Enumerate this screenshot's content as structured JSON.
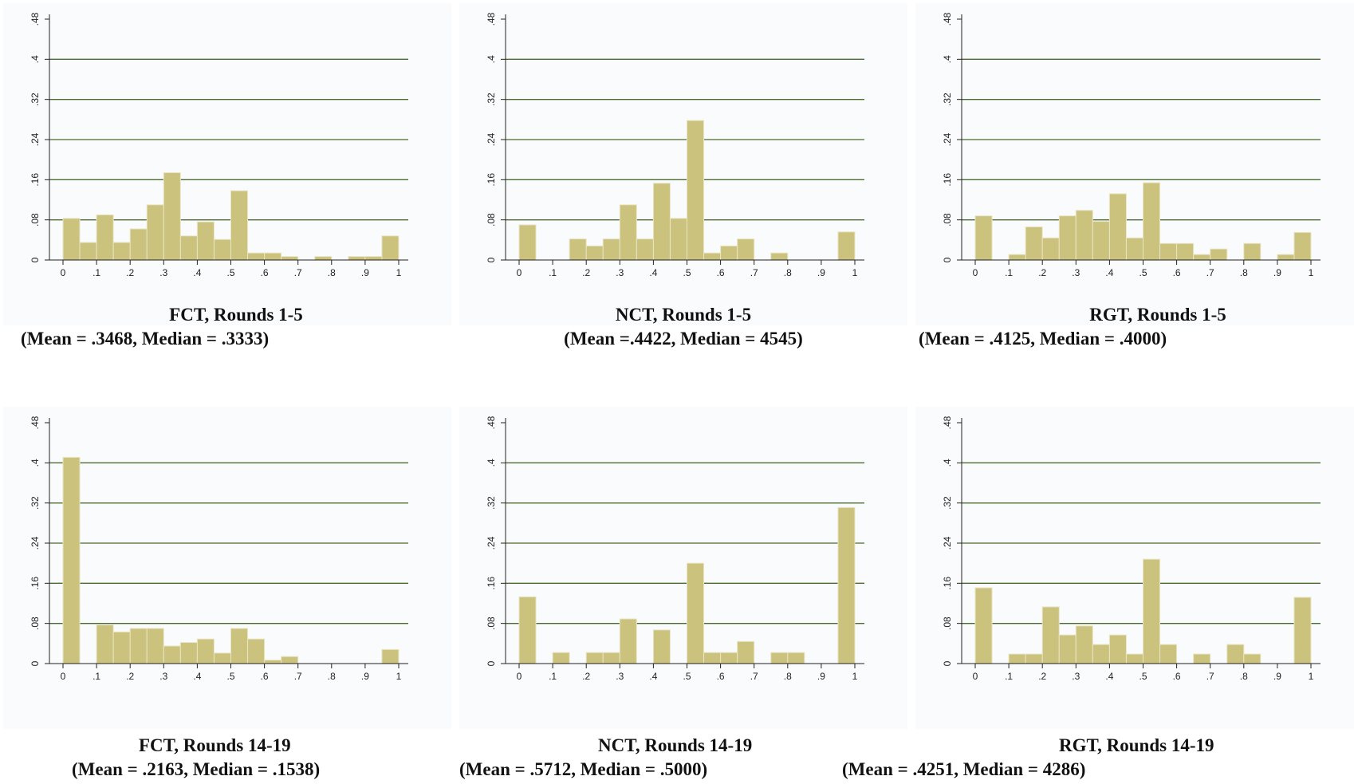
{
  "colors": {
    "bar": "#cbc27e",
    "bar_edge": "#e9e5c4",
    "grid": "#4b6b2e",
    "axis": "#222222",
    "panel_bg": "#fafbfd"
  },
  "chart_data": [
    {
      "type": "bar",
      "title": "FCT, Rounds 1-5",
      "subtitle": "(Mean = .3468, Median = .3333)",
      "bin_width": 0.05,
      "bin_starts": [
        0,
        0.05,
        0.1,
        0.15,
        0.2,
        0.25,
        0.3,
        0.35,
        0.4,
        0.45,
        0.5,
        0.55,
        0.6,
        0.65,
        0.7,
        0.75,
        0.8,
        0.85,
        0.9,
        0.95
      ],
      "values": [
        0.083,
        0.035,
        0.09,
        0.035,
        0.062,
        0.11,
        0.174,
        0.048,
        0.076,
        0.041,
        0.138,
        0.014,
        0.014,
        0.007,
        0,
        0.007,
        0,
        0.007,
        0.007,
        0.048
      ],
      "xlim": [
        0,
        1
      ],
      "ylim": [
        0,
        0.48
      ],
      "x_ticks": [
        "0",
        ".1",
        ".2",
        ".3",
        ".4",
        ".5",
        ".6",
        ".7",
        ".8",
        ".9",
        "1"
      ],
      "y_ticks": [
        "0",
        ".08",
        ".16",
        ".24",
        ".32",
        ".4",
        ".48"
      ],
      "grid": true
    },
    {
      "type": "bar",
      "title": "NCT, Rounds 1-5",
      "subtitle": "(Mean =.4422, Median = 4545)",
      "bin_width": 0.05,
      "bin_starts": [
        0,
        0.05,
        0.1,
        0.15,
        0.2,
        0.25,
        0.3,
        0.35,
        0.4,
        0.45,
        0.5,
        0.55,
        0.6,
        0.65,
        0.7,
        0.75,
        0.8,
        0.85,
        0.9,
        0.95
      ],
      "values": [
        0.07,
        0,
        0,
        0.042,
        0.028,
        0.042,
        0.11,
        0.042,
        0.153,
        0.083,
        0.278,
        0.014,
        0.028,
        0.042,
        0,
        0.014,
        0,
        0,
        0,
        0.056
      ],
      "xlim": [
        0,
        1
      ],
      "ylim": [
        0,
        0.48
      ],
      "x_ticks": [
        "0",
        ".1",
        ".2",
        ".3",
        ".4",
        ".5",
        ".6",
        ".7",
        ".8",
        ".9",
        "1"
      ],
      "y_ticks": [
        "0",
        ".08",
        ".16",
        ".24",
        ".32",
        ".4",
        ".48"
      ],
      "grid": true
    },
    {
      "type": "bar",
      "title": "RGT, Rounds 1-5",
      "subtitle": "(Mean = .4125, Median = .4000)",
      "bin_width": 0.05,
      "bin_starts": [
        0,
        0.05,
        0.1,
        0.15,
        0.2,
        0.25,
        0.3,
        0.35,
        0.4,
        0.45,
        0.5,
        0.55,
        0.6,
        0.65,
        0.7,
        0.75,
        0.8,
        0.85,
        0.9,
        0.95
      ],
      "values": [
        0.088,
        0,
        0.011,
        0.066,
        0.044,
        0.088,
        0.099,
        0.077,
        0.132,
        0.044,
        0.154,
        0.033,
        0.033,
        0.011,
        0.022,
        0,
        0.033,
        0,
        0.011,
        0.055
      ],
      "xlim": [
        0,
        1
      ],
      "ylim": [
        0,
        0.48
      ],
      "x_ticks": [
        "0",
        ".1",
        ".2",
        ".3",
        ".4",
        ".5",
        ".6",
        ".7",
        ".8",
        ".9",
        "1"
      ],
      "y_ticks": [
        "0",
        ".08",
        ".16",
        ".24",
        ".32",
        ".4",
        ".48"
      ],
      "grid": true
    },
    {
      "type": "bar",
      "title": "FCT, Rounds 14-19",
      "subtitle": "(Mean = .2163, Median = .1538)",
      "bin_width": 0.05,
      "bin_starts": [
        0,
        0.05,
        0.1,
        0.15,
        0.2,
        0.25,
        0.3,
        0.35,
        0.4,
        0.45,
        0.5,
        0.55,
        0.6,
        0.65,
        0.7,
        0.75,
        0.8,
        0.85,
        0.9,
        0.95
      ],
      "values": [
        0.411,
        0,
        0.077,
        0.063,
        0.07,
        0.07,
        0.035,
        0.042,
        0.049,
        0.021,
        0.07,
        0.049,
        0.007,
        0.014,
        0,
        0,
        0,
        0,
        0,
        0.028
      ],
      "xlim": [
        0,
        1
      ],
      "ylim": [
        0,
        0.48
      ],
      "x_ticks": [
        "0",
        ".1",
        ".2",
        ".3",
        ".4",
        ".5",
        ".6",
        ".7",
        ".8",
        ".9",
        "1"
      ],
      "y_ticks": [
        "0",
        ".08",
        ".16",
        ".24",
        ".32",
        ".4",
        ".48"
      ],
      "grid": true
    },
    {
      "type": "bar",
      "title": "NCT, Rounds 14-19",
      "subtitle": "(Mean = .5712, Median = .5000)",
      "bin_width": 0.05,
      "bin_starts": [
        0,
        0.05,
        0.1,
        0.15,
        0.2,
        0.25,
        0.3,
        0.35,
        0.4,
        0.45,
        0.5,
        0.55,
        0.6,
        0.65,
        0.7,
        0.75,
        0.8,
        0.85,
        0.9,
        0.95
      ],
      "values": [
        0.133,
        0,
        0.022,
        0,
        0.022,
        0.022,
        0.089,
        0,
        0.067,
        0,
        0.2,
        0.022,
        0.022,
        0.044,
        0,
        0.022,
        0.022,
        0,
        0,
        0.311
      ],
      "xlim": [
        0,
        1
      ],
      "ylim": [
        0,
        0.48
      ],
      "x_ticks": [
        "0",
        ".1",
        ".2",
        ".3",
        ".4",
        ".5",
        ".6",
        ".7",
        ".8",
        ".9",
        "1"
      ],
      "y_ticks": [
        "0",
        ".08",
        ".16",
        ".24",
        ".32",
        ".4",
        ".48"
      ],
      "grid": true
    },
    {
      "type": "bar",
      "title": "RGT, Rounds 14-19",
      "subtitle": "(Mean = .4251, Median = 4286)",
      "bin_width": 0.05,
      "bin_starts": [
        0,
        0.05,
        0.1,
        0.15,
        0.2,
        0.25,
        0.3,
        0.35,
        0.4,
        0.45,
        0.5,
        0.55,
        0.6,
        0.65,
        0.7,
        0.75,
        0.8,
        0.85,
        0.9,
        0.95
      ],
      "values": [
        0.151,
        0,
        0.019,
        0.019,
        0.113,
        0.057,
        0.075,
        0.038,
        0.057,
        0.019,
        0.208,
        0.038,
        0,
        0.019,
        0,
        0.038,
        0.019,
        0,
        0,
        0.132
      ],
      "xlim": [
        0,
        1
      ],
      "ylim": [
        0,
        0.48
      ],
      "x_ticks": [
        "0",
        ".1",
        ".2",
        ".3",
        ".4",
        ".5",
        ".6",
        ".7",
        ".8",
        ".9",
        "1"
      ],
      "y_ticks": [
        "0",
        ".08",
        ".16",
        ".24",
        ".32",
        ".4",
        ".48"
      ],
      "grid": true
    }
  ]
}
